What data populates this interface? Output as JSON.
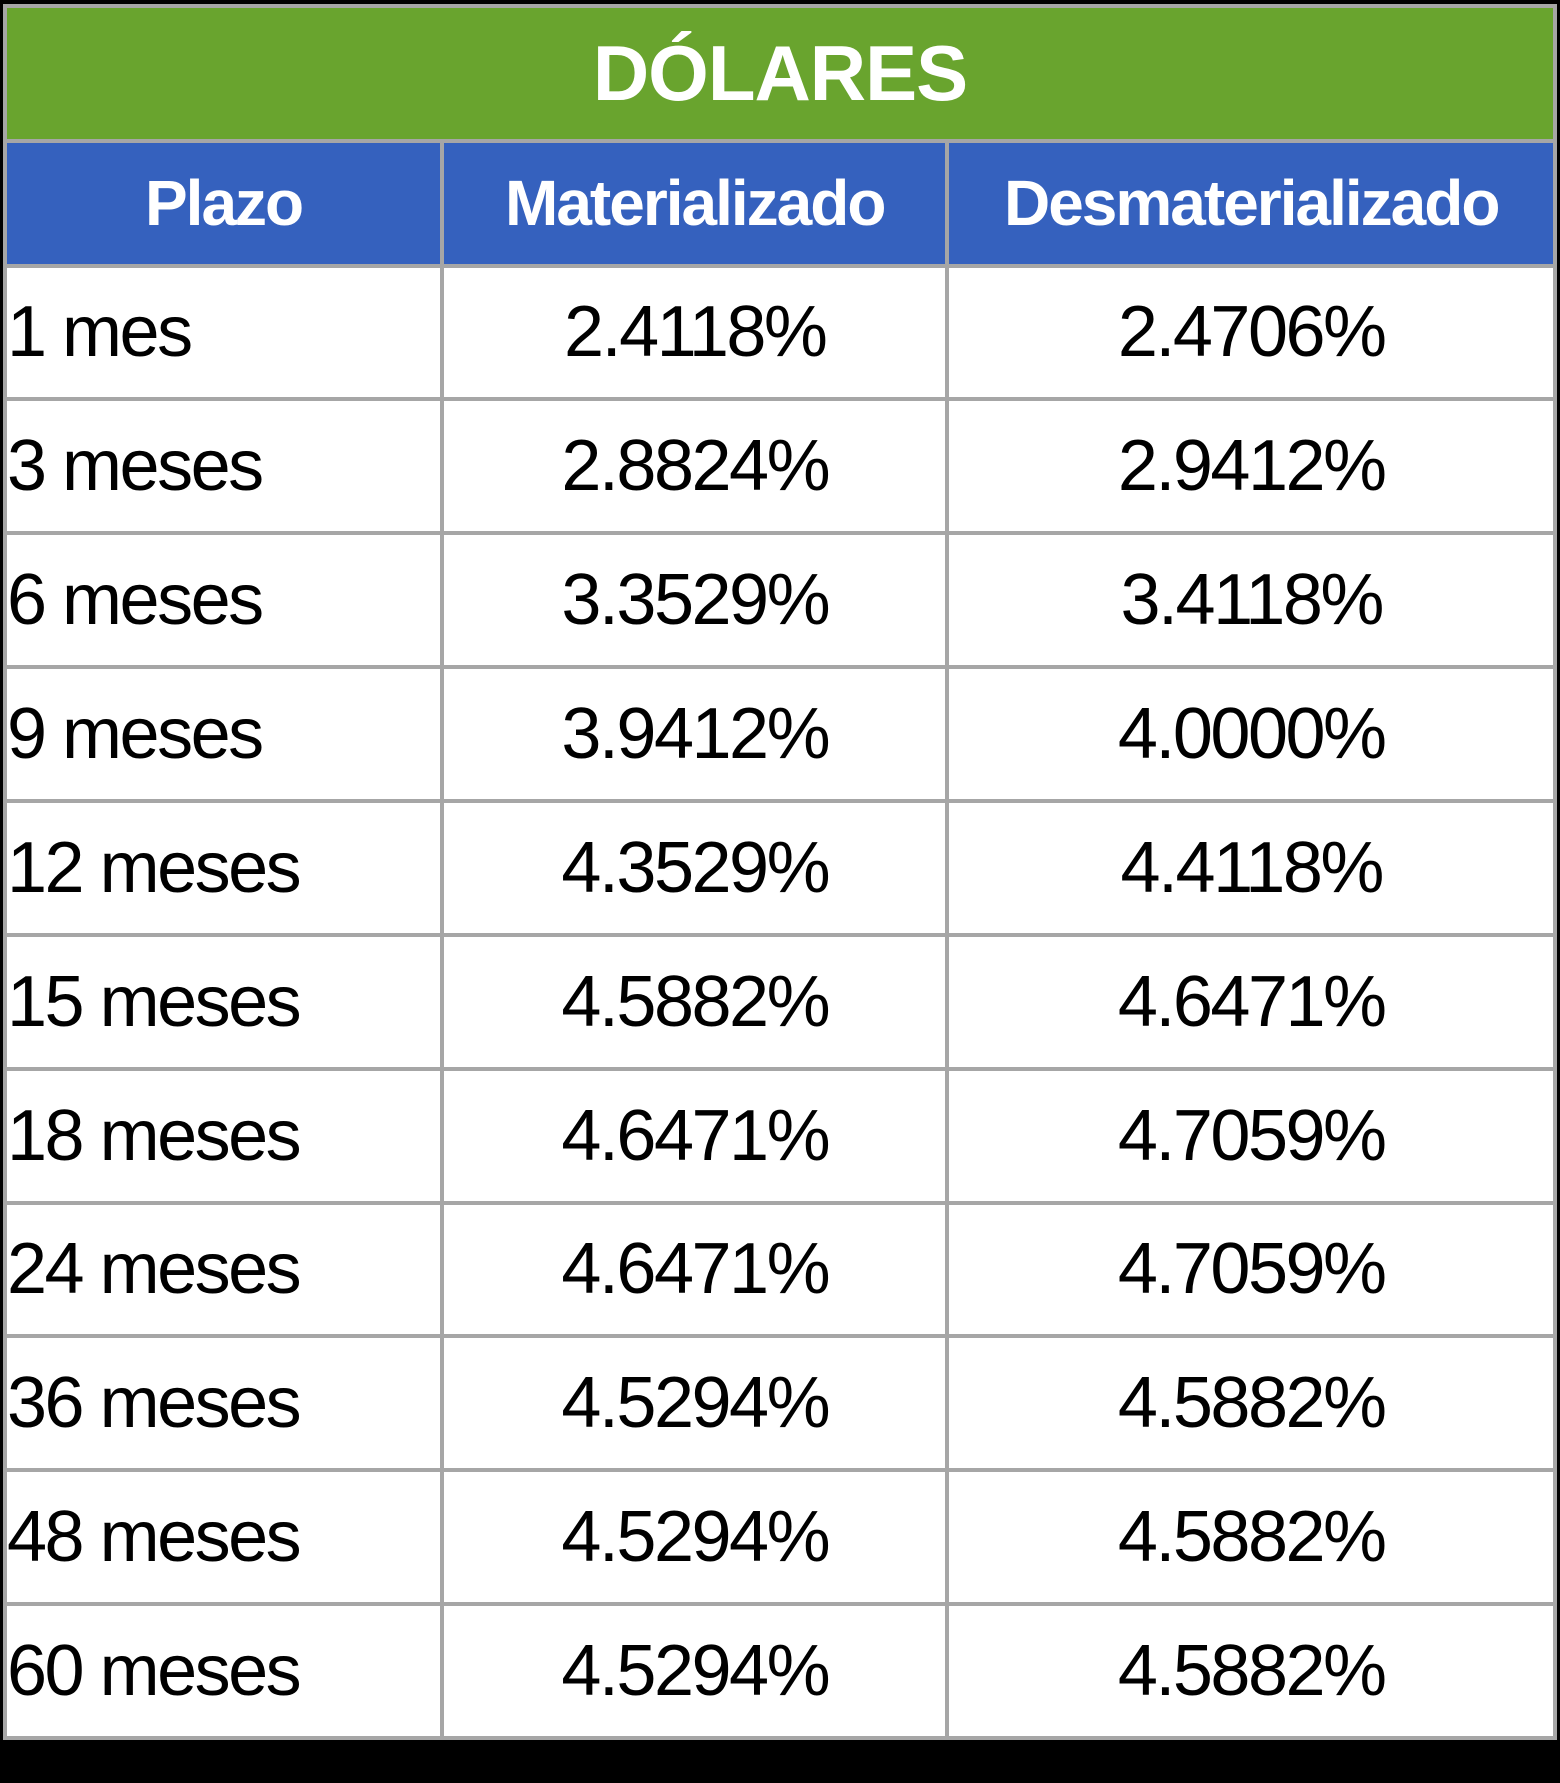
{
  "colors": {
    "title_bg": "#69A42E",
    "header_bg": "#3561BE",
    "border": "#A6A6A6",
    "cell_bg": "#FFFFFF",
    "frame": "#000000",
    "title_text": "#FFFFFF",
    "data_text": "#000000"
  },
  "chart_data": {
    "type": "table",
    "title": "DÓLARES",
    "columns": [
      "Plazo",
      "Materializado",
      "Desmaterializado"
    ],
    "rows": [
      [
        "1 mes",
        "2.4118%",
        "2.4706%"
      ],
      [
        "3 meses",
        "2.8824%",
        "2.9412%"
      ],
      [
        "6 meses",
        "3.3529%",
        "3.4118%"
      ],
      [
        "9 meses",
        "3.9412%",
        "4.0000%"
      ],
      [
        "12 meses",
        "4.3529%",
        "4.4118%"
      ],
      [
        "15 meses",
        "4.5882%",
        "4.6471%"
      ],
      [
        "18 meses",
        "4.6471%",
        "4.7059%"
      ],
      [
        "24 meses",
        "4.6471%",
        "4.7059%"
      ],
      [
        "36 meses",
        "4.5294%",
        "4.5882%"
      ],
      [
        "48 meses",
        "4.5294%",
        "4.5882%"
      ],
      [
        "60 meses",
        "4.5294%",
        "4.5882%"
      ]
    ],
    "values_materializado": [
      2.4118,
      2.8824,
      3.3529,
      3.9412,
      4.3529,
      4.5882,
      4.6471,
      4.6471,
      4.5294,
      4.5294,
      4.5294
    ],
    "values_desmaterializado": [
      2.4706,
      2.9412,
      3.4118,
      4.0,
      4.4118,
      4.6471,
      4.7059,
      4.7059,
      4.5882,
      4.5882,
      4.5882
    ],
    "unit": "%"
  }
}
